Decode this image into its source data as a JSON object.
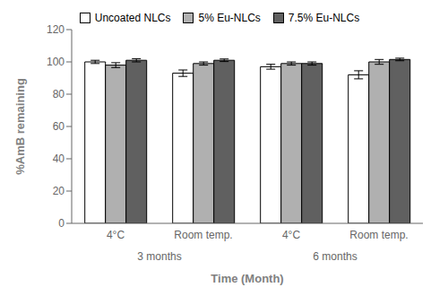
{
  "chart_data": {
    "type": "bar",
    "categories": [
      "4°C",
      "Room temp.",
      "4°C",
      "Room temp."
    ],
    "category_groups": [
      "3 months",
      "6 months"
    ],
    "series": [
      {
        "name": "Uncoated NLCs",
        "color": "#ffffff",
        "values": [
          100.0,
          93.0,
          97.0,
          92.0
        ],
        "errors": [
          1.0,
          2.0,
          1.5,
          2.5
        ]
      },
      {
        "name": "5% Eu-NLCs",
        "color": "#b0b0b0",
        "values": [
          98.0,
          99.0,
          99.0,
          100.0
        ],
        "errors": [
          1.5,
          1.0,
          1.0,
          1.5
        ]
      },
      {
        "name": "7.5% Eu-NLCs",
        "color": "#606060",
        "values": [
          101.0,
          101.0,
          99.0,
          101.5
        ],
        "errors": [
          1.0,
          0.8,
          1.0,
          0.8
        ]
      }
    ],
    "ylabel": "%AmB remaining",
    "xlabel": "Time (Month)",
    "ylim": [
      0,
      120
    ],
    "yticks": [
      0,
      20,
      40,
      60,
      80,
      100,
      120
    ],
    "legend": "top",
    "grid": false
  }
}
